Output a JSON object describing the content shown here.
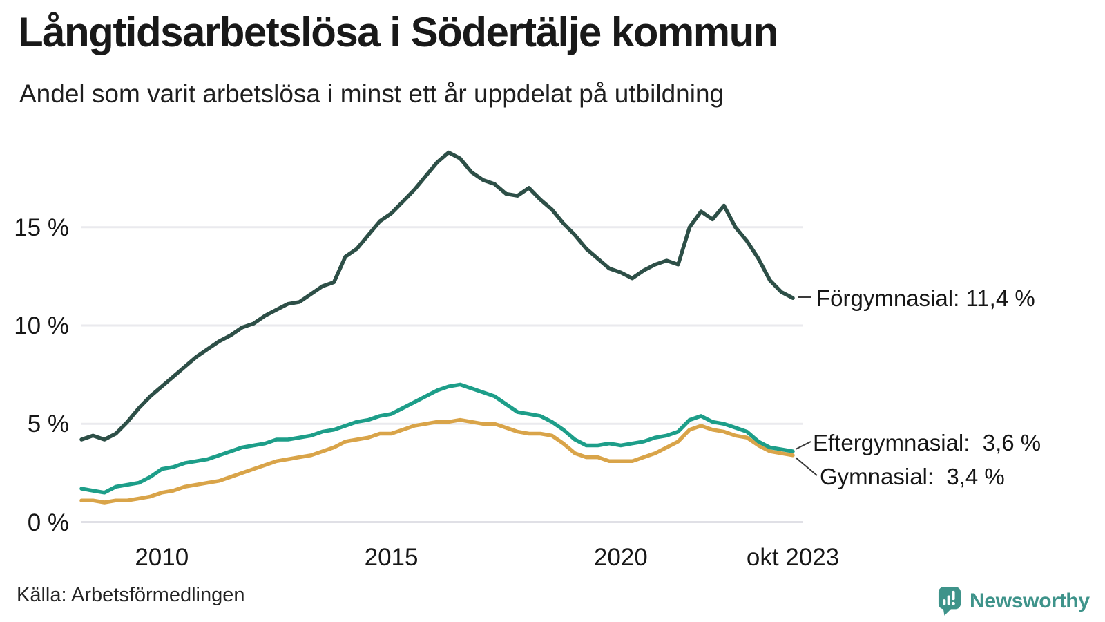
{
  "header": {
    "title": "Långtidsarbetslösa i Södertälje kommun",
    "subtitle": "Andel som varit arbetslösa i minst ett år uppdelat på utbildning"
  },
  "chart_data": {
    "type": "line",
    "title": "Långtidsarbetslösa i Södertälje kommun",
    "subtitle": "Andel som varit arbetslösa i minst ett år uppdelat på utbildning",
    "x_unit": "decimal_year",
    "note": "values estimated from chart, quarterly resolution",
    "xlim": [
      2008.25,
      2023.75
    ],
    "ylim": [
      0,
      19.5
    ],
    "grid": "horizontal",
    "legend": "end-of-line-labels",
    "yticks": [
      {
        "value": 0,
        "label": "0 %"
      },
      {
        "value": 5,
        "label": "5 %"
      },
      {
        "value": 10,
        "label": "10 %"
      },
      {
        "value": 15,
        "label": "15 %"
      }
    ],
    "xticks": [
      {
        "value": 2010,
        "label": "2010"
      },
      {
        "value": 2015,
        "label": "2015"
      },
      {
        "value": 2020,
        "label": "2020"
      },
      {
        "value": 2023.75,
        "label": "okt 2023"
      }
    ],
    "x": [
      2008.25,
      2008.5,
      2008.75,
      2009.0,
      2009.25,
      2009.5,
      2009.75,
      2010.0,
      2010.25,
      2010.5,
      2010.75,
      2011.0,
      2011.25,
      2011.5,
      2011.75,
      2012.0,
      2012.25,
      2012.5,
      2012.75,
      2013.0,
      2013.25,
      2013.5,
      2013.75,
      2014.0,
      2014.25,
      2014.5,
      2014.75,
      2015.0,
      2015.25,
      2015.5,
      2015.75,
      2016.0,
      2016.25,
      2016.5,
      2016.75,
      2017.0,
      2017.25,
      2017.5,
      2017.75,
      2018.0,
      2018.25,
      2018.5,
      2018.75,
      2019.0,
      2019.25,
      2019.5,
      2019.75,
      2020.0,
      2020.25,
      2020.5,
      2020.75,
      2021.0,
      2021.25,
      2021.5,
      2021.75,
      2022.0,
      2022.25,
      2022.5,
      2022.75,
      2023.0,
      2023.25,
      2023.5,
      2023.75
    ],
    "series": [
      {
        "name": "Förgymnasial",
        "color": "#2d4f47",
        "end_label": "Förgymnasial: 11,4 %",
        "end_value": 11.4,
        "values": [
          4.2,
          4.4,
          4.2,
          4.5,
          5.1,
          5.8,
          6.4,
          6.9,
          7.4,
          7.9,
          8.4,
          8.8,
          9.2,
          9.5,
          9.9,
          10.1,
          10.5,
          10.8,
          11.1,
          11.2,
          11.6,
          12.0,
          12.2,
          13.5,
          13.9,
          14.6,
          15.3,
          15.7,
          16.3,
          16.9,
          17.6,
          18.3,
          18.8,
          18.5,
          17.8,
          17.4,
          17.2,
          16.7,
          16.6,
          17.0,
          16.4,
          15.9,
          15.2,
          14.6,
          13.9,
          13.4,
          12.9,
          12.7,
          12.4,
          12.8,
          13.1,
          13.3,
          13.1,
          15.0,
          15.8,
          15.4,
          16.1,
          15.0,
          14.3,
          13.4,
          12.3,
          11.7,
          11.4
        ]
      },
      {
        "name": "Gymnasial",
        "color": "#d9a449",
        "end_label": "Gymnasial:  3,4 %",
        "end_value": 3.4,
        "values": [
          1.1,
          1.1,
          1.0,
          1.1,
          1.1,
          1.2,
          1.3,
          1.5,
          1.6,
          1.8,
          1.9,
          2.0,
          2.1,
          2.3,
          2.5,
          2.7,
          2.9,
          3.1,
          3.2,
          3.3,
          3.4,
          3.6,
          3.8,
          4.1,
          4.2,
          4.3,
          4.5,
          4.5,
          4.7,
          4.9,
          5.0,
          5.1,
          5.1,
          5.2,
          5.1,
          5.0,
          5.0,
          4.8,
          4.6,
          4.5,
          4.5,
          4.4,
          4.0,
          3.5,
          3.3,
          3.3,
          3.1,
          3.1,
          3.1,
          3.3,
          3.5,
          3.8,
          4.1,
          4.7,
          4.9,
          4.7,
          4.6,
          4.4,
          4.3,
          3.9,
          3.6,
          3.5,
          3.4
        ]
      },
      {
        "name": "Eftergymnasial",
        "color": "#1d9e89",
        "end_label": "Eftergymnasial:  3,6 %",
        "end_value": 3.6,
        "values": [
          1.7,
          1.6,
          1.5,
          1.8,
          1.9,
          2.0,
          2.3,
          2.7,
          2.8,
          3.0,
          3.1,
          3.2,
          3.4,
          3.6,
          3.8,
          3.9,
          4.0,
          4.2,
          4.2,
          4.3,
          4.4,
          4.6,
          4.7,
          4.9,
          5.1,
          5.2,
          5.4,
          5.5,
          5.8,
          6.1,
          6.4,
          6.7,
          6.9,
          7.0,
          6.8,
          6.6,
          6.4,
          6.0,
          5.6,
          5.5,
          5.4,
          5.1,
          4.7,
          4.2,
          3.9,
          3.9,
          4.0,
          3.9,
          4.0,
          4.1,
          4.3,
          4.4,
          4.6,
          5.2,
          5.4,
          5.1,
          5.0,
          4.8,
          4.6,
          4.1,
          3.8,
          3.7,
          3.6
        ]
      }
    ]
  },
  "annotations": {
    "forgymnasial": "Förgymnasial: 11,4 %",
    "eftergymnasial": "Eftergymnasial:  3,6 %",
    "gymnasial": "Gymnasial:  3,4 %"
  },
  "source": {
    "label": "Källa: Arbetsförmedlingen"
  },
  "branding": {
    "name": "Newsworthy",
    "color": "#3e938a"
  }
}
